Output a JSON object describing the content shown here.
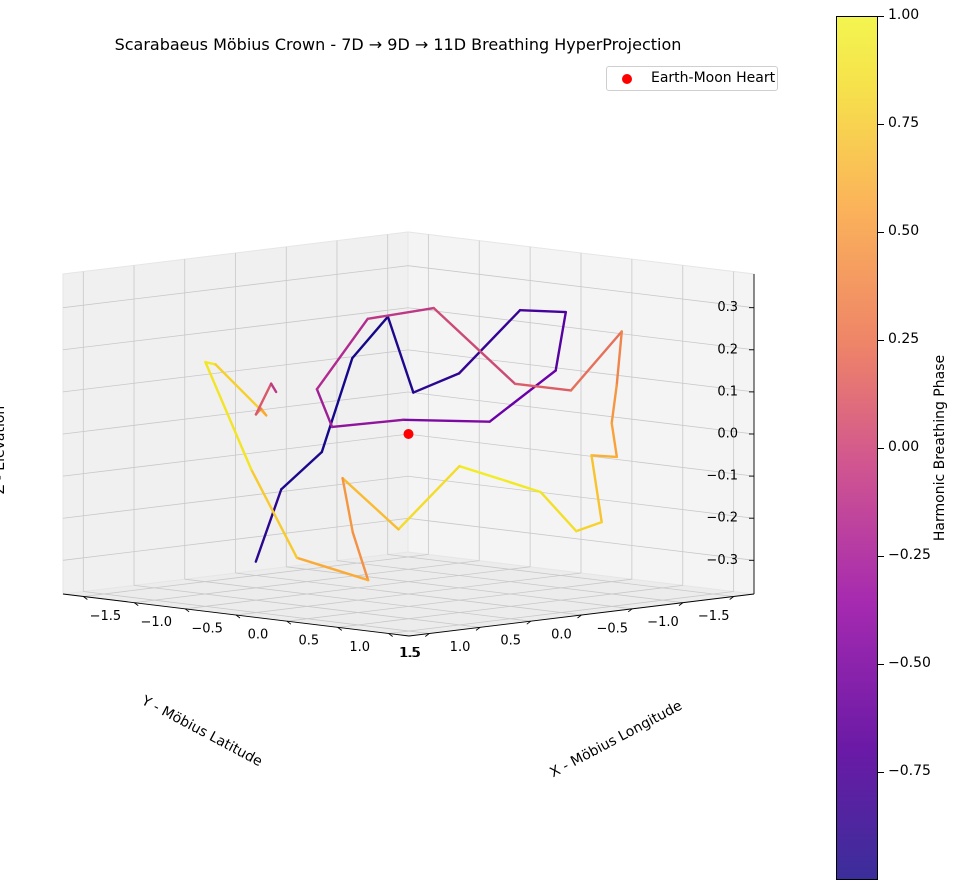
{
  "chart_data": {
    "type": "line",
    "subtype": "3d-trajectory",
    "title": "Scarabaeus Möbius Crown - 7D → 9D → 11D Breathing HyperProjection",
    "xlabel": "X - Möbius Longitude",
    "ylabel": "Y - Möbius Latitude",
    "zlabel": "Z - Elevation",
    "xticks": [
      "−1.5",
      "−1.0",
      "−0.5",
      "0.0",
      "0.5",
      "1.0",
      "1.5"
    ],
    "yticks": [
      "−1.5",
      "−1.0",
      "−0.5",
      "0.0",
      "0.5",
      "1.0",
      "1.5"
    ],
    "zticks": [
      "−0.3",
      "−0.2",
      "−0.1",
      "0.0",
      "0.1",
      "0.2",
      "0.3"
    ],
    "xlim": [
      -1.7,
      1.7
    ],
    "ylim": [
      -1.7,
      1.7
    ],
    "zlim": [
      -0.38,
      0.38
    ],
    "grid": true,
    "legend_position": "top-right",
    "legend": [
      {
        "label": "Earth-Moon Heart",
        "color": "#ff0000",
        "marker": "circle"
      }
    ],
    "marker_point": {
      "name": "Earth-Moon Heart",
      "x": 0.0,
      "y": 0.0,
      "z": 0.0,
      "color": "#ff0000"
    },
    "colorbar": {
      "label": "Harmonic Breathing Phase",
      "colormap": "plasma",
      "range": [
        -1.0,
        1.0
      ],
      "ticks": [
        "1.00",
        "0.75",
        "0.50",
        "0.25",
        "0.00",
        "−0.25",
        "−0.50",
        "−0.75"
      ],
      "tick_values": [
        1.0,
        0.75,
        0.5,
        0.25,
        0.0,
        -0.25,
        -0.5,
        -0.75
      ]
    },
    "series": [
      {
        "color_by": "Harmonic Breathing Phase",
        "points": [
          {
            "x": -1.55,
            "y": -0.05,
            "z": -0.35,
            "c": -0.85
          },
          {
            "x": -1.45,
            "y": -0.2,
            "z": -0.18,
            "c": -0.9
          },
          {
            "x": -1.4,
            "y": -0.55,
            "z": -0.1,
            "c": -0.95
          },
          {
            "x": -1.3,
            "y": -0.75,
            "z": 0.12,
            "c": -0.98
          },
          {
            "x": -1.1,
            "y": -0.9,
            "z": 0.22,
            "c": -0.95
          },
          {
            "x": -0.8,
            "y": -0.85,
            "z": 0.05,
            "c": -0.9
          },
          {
            "x": -0.5,
            "y": -1.0,
            "z": 0.1,
            "c": -0.85
          },
          {
            "x": -0.2,
            "y": -1.3,
            "z": 0.25,
            "c": -0.8
          },
          {
            "x": 0.1,
            "y": -1.45,
            "z": 0.25,
            "c": -0.72
          },
          {
            "x": 0.2,
            "y": -1.25,
            "z": 0.12,
            "c": -0.65
          },
          {
            "x": -0.1,
            "y": -0.9,
            "z": 0.0,
            "c": -0.55
          },
          {
            "x": -0.6,
            "y": -0.55,
            "z": 0.0,
            "c": -0.45
          },
          {
            "x": -1.0,
            "y": -0.25,
            "z": -0.02,
            "c": -0.35
          },
          {
            "x": -0.9,
            "y": 0.0,
            "z": 0.08,
            "c": -0.25
          },
          {
            "x": -0.6,
            "y": -0.2,
            "z": 0.25,
            "c": -0.15
          },
          {
            "x": -0.2,
            "y": -0.45,
            "z": 0.28,
            "c": -0.05
          },
          {
            "x": 0.2,
            "y": -0.85,
            "z": 0.1,
            "c": 0.1
          },
          {
            "x": 0.4,
            "y": -1.2,
            "z": 0.08,
            "c": 0.2
          },
          {
            "x": 0.65,
            "y": -1.45,
            "z": 0.22,
            "c": 0.35
          },
          {
            "x": 0.75,
            "y": -1.3,
            "z": 0.1,
            "c": 0.45
          },
          {
            "x": 0.9,
            "y": -1.1,
            "z": 0.02,
            "c": 0.55
          },
          {
            "x": 1.1,
            "y": -0.95,
            "z": -0.05,
            "c": 0.6
          },
          {
            "x": 1.25,
            "y": -0.55,
            "z": -0.03,
            "c": 0.7
          },
          {
            "x": 1.45,
            "y": -0.45,
            "z": -0.18,
            "c": 0.78
          },
          {
            "x": 1.35,
            "y": -0.3,
            "z": -0.2,
            "c": 0.85
          },
          {
            "x": 1.3,
            "y": 0.0,
            "z": -0.1,
            "c": 0.9
          },
          {
            "x": 1.0,
            "y": 0.05,
            "z": -0.08,
            "c": 0.95
          },
          {
            "x": 0.7,
            "y": 0.2,
            "z": -0.05,
            "c": 0.92
          },
          {
            "x": 0.4,
            "y": 0.5,
            "z": -0.2,
            "c": 0.8
          },
          {
            "x": 0.1,
            "y": 0.75,
            "z": -0.08,
            "c": 0.6
          },
          {
            "x": 0.3,
            "y": 0.85,
            "z": -0.2,
            "c": 0.4
          },
          {
            "x": 0.6,
            "y": 1.0,
            "z": -0.3,
            "c": 0.55
          },
          {
            "x": 0.2,
            "y": 1.3,
            "z": -0.25,
            "c": 0.7
          },
          {
            "x": -0.2,
            "y": 1.35,
            "z": -0.05,
            "c": 0.85
          },
          {
            "x": -0.5,
            "y": 1.5,
            "z": 0.2,
            "c": 0.95
          },
          {
            "x": -0.7,
            "y": 1.2,
            "z": 0.18,
            "c": 0.9
          },
          {
            "x": -0.6,
            "y": 0.8,
            "z": 0.05,
            "c": 0.7
          },
          {
            "x": -0.9,
            "y": 0.55,
            "z": 0.05,
            "c": 0.5
          },
          {
            "x": -1.2,
            "y": 0.3,
            "z": 0.02,
            "c": 0.25
          },
          {
            "x": -1.35,
            "y": 0.0,
            "z": 0.08,
            "c": 0.0
          },
          {
            "x": -1.5,
            "y": -0.2,
            "z": 0.05,
            "c": -0.2
          }
        ]
      }
    ]
  }
}
